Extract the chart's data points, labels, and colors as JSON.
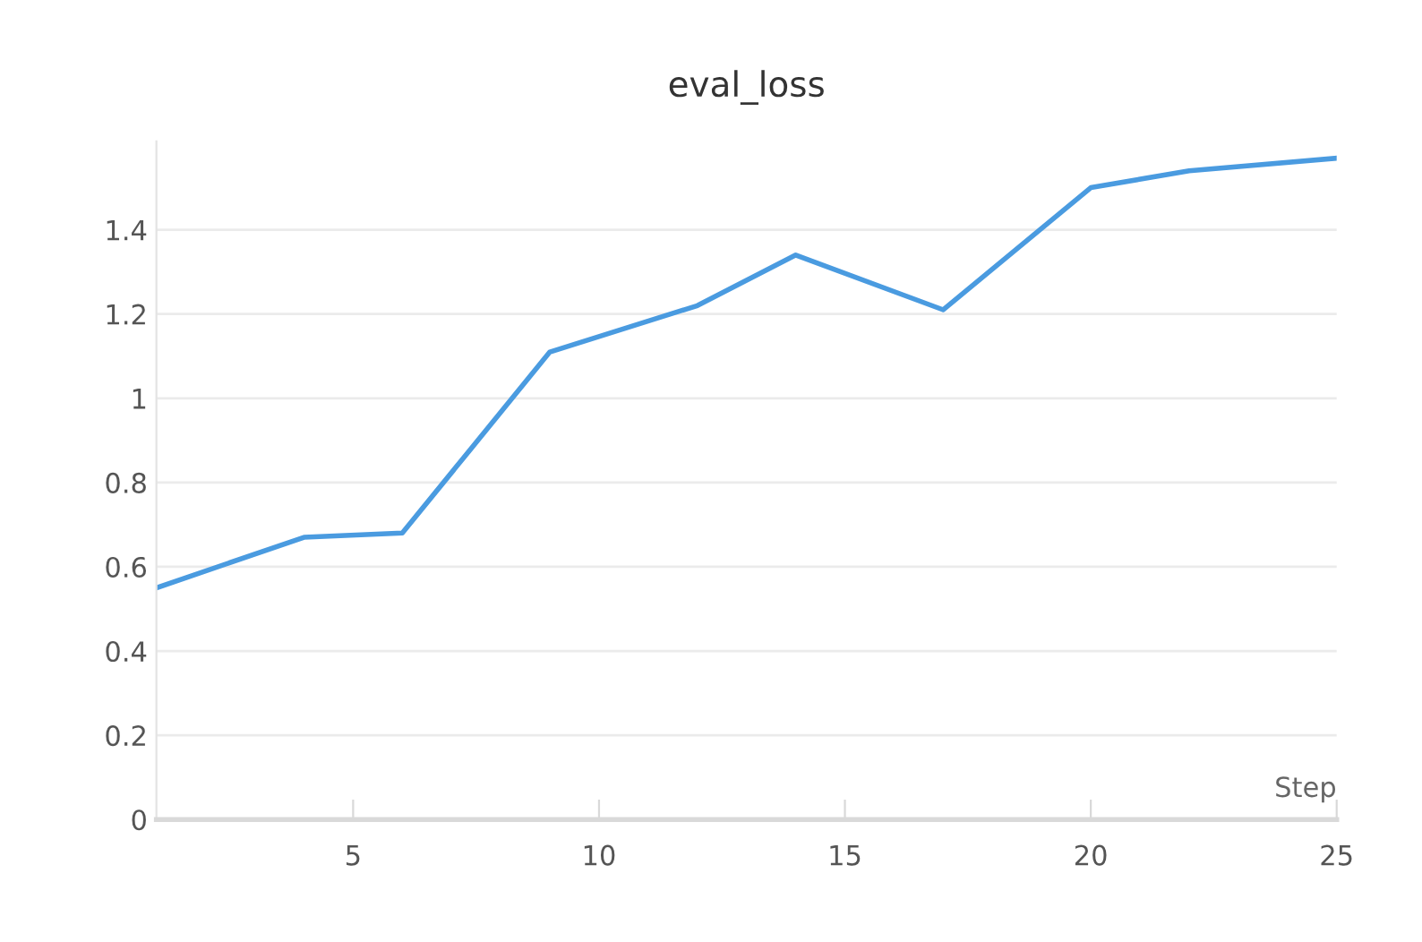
{
  "chart_data": {
    "type": "line",
    "title": "eval_loss",
    "xlabel": "Step",
    "x": [
      1,
      4,
      6,
      9,
      12,
      14,
      17,
      20,
      22,
      25
    ],
    "series": [
      {
        "color": "#4a9be0",
        "values": [
          0.55,
          0.67,
          0.68,
          1.11,
          1.22,
          1.34,
          1.21,
          1.5,
          1.54,
          1.57
        ]
      }
    ],
    "xlim": [
      1,
      25
    ],
    "xticks": [
      5,
      10,
      15,
      20,
      25
    ],
    "ylim": [
      0,
      1.61
    ],
    "yticks": [
      0,
      0.2,
      0.4,
      0.6,
      0.8,
      {
        "value": 1,
        "label": "1"
      },
      1.2,
      1.4
    ],
    "grid": "y",
    "line_style": "solid"
  }
}
